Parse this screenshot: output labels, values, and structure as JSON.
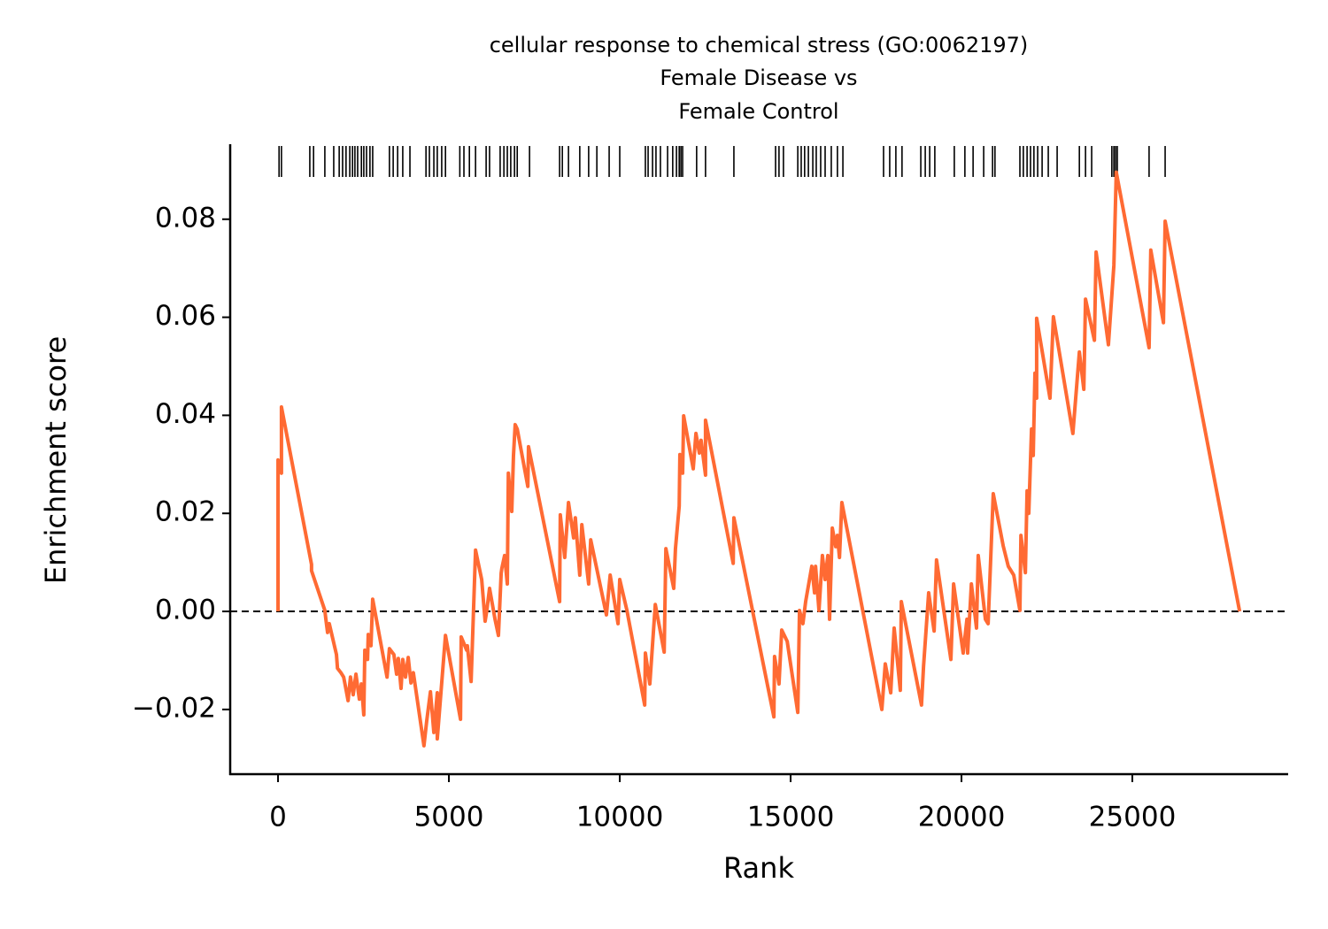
{
  "chart_data": {
    "type": "line",
    "title": [
      "cellular response to chemical stress (GO:0062197)",
      "Female Disease vs",
      "Female Control"
    ],
    "xlabel": "Rank",
    "ylabel": "Enrichment score",
    "xlim": [
      -1400,
      29560
    ],
    "ylim": [
      -0.0332,
      0.0953
    ],
    "xticks": [
      0,
      5000,
      10000,
      15000,
      20000,
      25000
    ],
    "yticks": [
      {
        "value": -0.02,
        "label": "−0.02"
      },
      {
        "value": 0,
        "label": "0.00"
      },
      0.02,
      0.04,
      0.06,
      0.08
    ],
    "zero_line": true,
    "hit_color": "#000000",
    "x": [
      0,
      0,
      100,
      100,
      980,
      980,
      1370,
      1400,
      1450,
      1500,
      1710,
      1740,
      1840,
      1920,
      1970,
      2050,
      2120,
      2200,
      2280,
      2380,
      2440,
      2510,
      2540,
      2620,
      2640,
      2720,
      2770,
      3190,
      3260,
      3390,
      3470,
      3520,
      3600,
      3650,
      3730,
      3810,
      3890,
      3960,
      4270,
      4350,
      4460,
      4560,
      4660,
      4660,
      4900,
      5340,
      5360,
      5520,
      5540,
      5650,
      5780,
      5960,
      6060,
      6110,
      6190,
      6350,
      6450,
      6530,
      6550,
      6630,
      6710,
      6740,
      6840,
      6890,
      6940,
      7000,
      7310,
      7330,
      8240,
      8260,
      8390,
      8500,
      8650,
      8700,
      8830,
      8890,
      9090,
      9150,
      9610,
      9720,
      9950,
      10000,
      10210,
      10730,
      10750,
      10880,
      11040,
      11300,
      11350,
      11580,
      11630,
      11740,
      11760,
      11840,
      11870,
      12150,
      12230,
      12330,
      12380,
      12510,
      12510,
      13320,
      13340,
      14510,
      14530,
      14660,
      14740,
      14900,
      15210,
      15260,
      15360,
      15440,
      15620,
      15700,
      15730,
      15830,
      15930,
      16010,
      16090,
      16140,
      16220,
      16320,
      16370,
      16430,
      16500,
      17670,
      17770,
      17930,
      18030,
      18210,
      18240,
      18830,
      18890,
      19040,
      19200,
      19270,
      19690,
      19770,
      20050,
      20160,
      20180,
      20290,
      20440,
      20490,
      20700,
      20780,
      20930,
      21220,
      21370,
      21530,
      21710,
      21740,
      21870,
      21920,
      21970,
      22050,
      22100,
      22150,
      22200,
      22200,
      22590,
      22690,
      23260,
      23450,
      23580,
      23630,
      23890,
      23940,
      24300,
      24460,
      24530,
      25490,
      25540,
      25910,
      25960,
      28140
    ],
    "series": [
      {
        "name": "Enrichment score",
        "color": "#ff6a33",
        "values": [
          0,
          0.0309,
          0.0282,
          0.0417,
          0.0096,
          0.0083,
          0.0002,
          -0.0016,
          -0.0043,
          -0.0025,
          -0.0088,
          -0.0116,
          -0.0125,
          -0.0134,
          -0.0152,
          -0.0182,
          -0.0134,
          -0.017,
          -0.0128,
          -0.0179,
          -0.0148,
          -0.0211,
          -0.0079,
          -0.0098,
          -0.0047,
          -0.007,
          0.0025,
          -0.0134,
          -0.0076,
          -0.0088,
          -0.0128,
          -0.0096,
          -0.0157,
          -0.0098,
          -0.0134,
          -0.0094,
          -0.0146,
          -0.0125,
          -0.0274,
          -0.0224,
          -0.0164,
          -0.0247,
          -0.0166,
          -0.026,
          -0.0049,
          -0.022,
          -0.0052,
          -0.0079,
          -0.007,
          -0.0143,
          0.0125,
          0.0065,
          -0.002,
          0.0002,
          0.0047,
          -0.0016,
          -0.0049,
          0.0078,
          0.0088,
          0.0114,
          0.0056,
          0.0282,
          0.0204,
          0.0318,
          0.0381,
          0.0372,
          0.0255,
          0.0336,
          0.002,
          0.0197,
          0.011,
          0.0222,
          0.015,
          0.0191,
          0.0074,
          0.0177,
          0.0056,
          0.0146,
          -0.0007,
          0.0074,
          -0.0025,
          0.0065,
          0.0002,
          -0.0191,
          -0.0085,
          -0.0148,
          0.0014,
          -0.0083,
          0.0128,
          0.0047,
          0.0128,
          0.0215,
          0.032,
          0.0282,
          0.0399,
          0.0291,
          0.0363,
          0.0323,
          0.0349,
          0.0278,
          0.039,
          0.0098,
          0.0191,
          -0.0215,
          -0.0092,
          -0.0148,
          -0.0038,
          -0.0061,
          -0.0206,
          0.0002,
          -0.0025,
          0.002,
          0.0092,
          0.0038,
          0.0092,
          0.0002,
          0.0114,
          0.0065,
          0.0114,
          -0.0016,
          0.017,
          0.0132,
          0.0155,
          0.011,
          0.0222,
          -0.02,
          -0.0107,
          -0.0166,
          -0.0034,
          -0.0161,
          0.002,
          -0.0191,
          -0.0112,
          0.0038,
          -0.004,
          0.0105,
          -0.0098,
          0.0056,
          -0.0085,
          -0.0016,
          -0.0085,
          0.0056,
          -0.0034,
          0.0114,
          -0.0016,
          -0.0025,
          0.024,
          0.0134,
          0.0092,
          0.0074,
          0.0002,
          0.0155,
          0.0079,
          0.0246,
          0.02,
          0.0372,
          0.0318,
          0.0486,
          0.0435,
          0.0598,
          0.0435,
          0.0601,
          0.0363,
          0.0529,
          0.0453,
          0.0637,
          0.0553,
          0.0733,
          0.0544,
          0.0706,
          0.0896,
          0.0538,
          0.0737,
          0.0589,
          0.0796,
          0
        ]
      }
    ],
    "hits": [
      30,
      100,
      930,
      1040,
      1370,
      1630,
      1790,
      1890,
      1990,
      2100,
      2180,
      2250,
      2330,
      2440,
      2510,
      2590,
      2690,
      2770,
      3260,
      3370,
      3500,
      3650,
      3860,
      4330,
      4430,
      4560,
      4660,
      4790,
      4900,
      5320,
      5440,
      5600,
      5780,
      6090,
      6190,
      6500,
      6610,
      6710,
      6810,
      6920,
      7000,
      7360,
      8240,
      8320,
      8500,
      8830,
      9090,
      9330,
      9690,
      10000,
      10750,
      10830,
      10960,
      11060,
      11190,
      11400,
      11550,
      11660,
      11740,
      11790,
      11840,
      12250,
      12510,
      13340,
      14560,
      14660,
      14790,
      15210,
      15310,
      15410,
      15520,
      15650,
      15750,
      15880,
      16010,
      16190,
      16370,
      16530,
      17720,
      17900,
      18080,
      18260,
      18810,
      18940,
      19070,
      19220,
      19790,
      20100,
      20340,
      20650,
      20910,
      20980,
      21710,
      21810,
      21920,
      22020,
      22120,
      22230,
      22360,
      22540,
      22800,
      23450,
      23630,
      23810,
      24400,
      24460,
      24510,
      24560,
      25490,
      25960
    ]
  }
}
